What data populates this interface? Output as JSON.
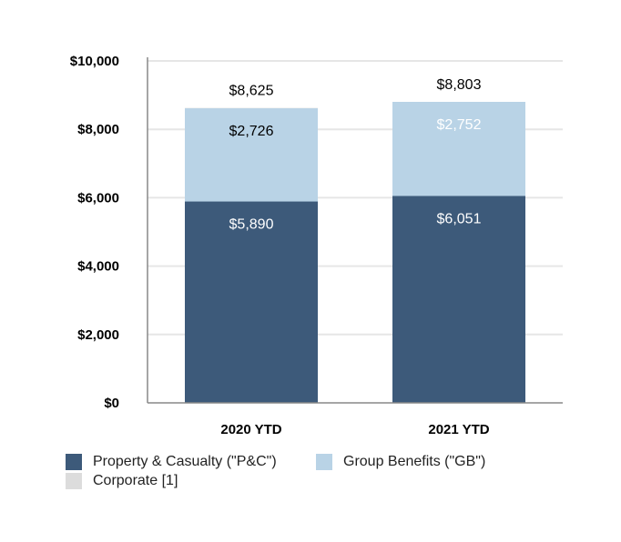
{
  "chart_data": {
    "type": "bar",
    "stacked": true,
    "categories": [
      "2020 YTD",
      "2021 YTD"
    ],
    "series": [
      {
        "name": "Property & Casualty (\"P&C\")",
        "values": [
          5890,
          6051
        ],
        "labels": [
          "$5,890",
          "$6,051"
        ],
        "color": "#3d5a7a",
        "label_color": "#ffffff"
      },
      {
        "name": "Group Benefits (\"GB\")",
        "values": [
          2726,
          2752
        ],
        "labels": [
          "$2,726",
          "$2,752"
        ],
        "color": "#b9d3e6",
        "label_colors": [
          "#000000",
          "#ffffff"
        ]
      },
      {
        "name": "Corporate [1]",
        "values": [
          9,
          0
        ],
        "color": "#dcdcdc"
      }
    ],
    "totals": [
      8625,
      8803
    ],
    "total_labels": [
      "$8,625",
      "$8,803"
    ],
    "ylim": [
      0,
      10000
    ],
    "yticks": [
      0,
      2000,
      4000,
      6000,
      8000,
      10000
    ],
    "ytick_labels": [
      "$0",
      "$2,000",
      "$4,000",
      "$6,000",
      "$8,000",
      "$10,000"
    ],
    "grid": true,
    "legend_position": "bottom"
  }
}
